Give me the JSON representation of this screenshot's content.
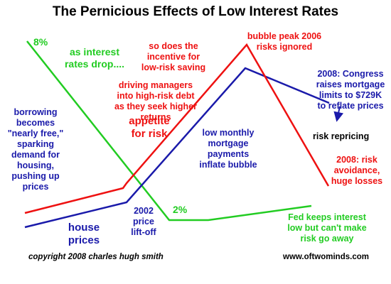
{
  "title": "The Pernicious Effects of Low Interest Rates",
  "colors": {
    "rates": "#22cc22",
    "house_prices": "#1a1aaa",
    "risk": "#ee1111",
    "text": "#000000"
  },
  "lines": [
    {
      "id": "interest-rates",
      "color_key": "rates"
    },
    {
      "id": "house-prices",
      "color_key": "house_prices"
    },
    {
      "id": "risk-appetite",
      "color_key": "risk"
    }
  ],
  "labels": {
    "rate_high": "8%",
    "rates_drop": "as interest\nrates drop....",
    "incentive": "so does the\nincentive for\nlow-risk saving",
    "managers": "driving managers\ninto high-risk debt\nas they seek higher\nreturns",
    "appetite": "appetite\nfor risk",
    "bubble_peak": "bubble peak 2006\nrisks ignored",
    "congress": "2008: Congress\nraises mortgage\nlimits to $729K\nto reflate prices",
    "borrowing": "borrowing\nbecomes\n\"nearly free,\"\nsparking\ndemand for\nhousing,\npushing up\nprices",
    "low_payments": "low monthly\nmortgage\npayments\ninflate bubble",
    "risk_repricing": "risk repricing",
    "risk_avoidance": "2008: risk\navoidance,\nhuge losses",
    "house_prices": "house\nprices",
    "liftoff": "2002\nprice\nlift-off",
    "rate_low": "2%",
    "fed": "Fed keeps interest\nlow but can't make\nrisk go away"
  },
  "footer": {
    "copyright": "copyright 2008  charles hugh smith",
    "website": "www.oftwominds.com"
  }
}
